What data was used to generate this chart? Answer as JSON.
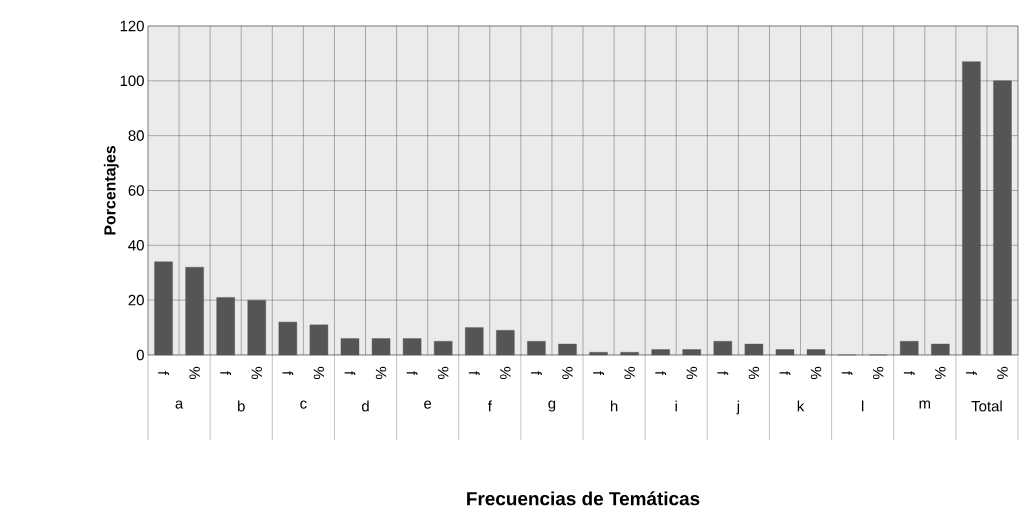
{
  "chart_data": {
    "type": "bar",
    "xlabel": "Frecuencias de Temáticas",
    "ylabel": "Porcentajes",
    "categories": [
      "a",
      "b",
      "c",
      "d",
      "e",
      "f",
      "g",
      "h",
      "i",
      "j",
      "k",
      "l",
      "m",
      "Total"
    ],
    "series": [
      {
        "name": "f",
        "color": "#555555",
        "values": [
          34,
          21,
          12,
          6,
          6,
          10,
          5,
          1,
          2,
          5,
          2,
          0,
          5,
          107
        ]
      },
      {
        "name": "%",
        "color": "#555555",
        "values": [
          32,
          20,
          11,
          6,
          5,
          9,
          4,
          1,
          2,
          4,
          2,
          0,
          4,
          100
        ]
      }
    ],
    "ylim": [
      0,
      120
    ],
    "yticks": [
      0,
      20,
      40,
      60,
      80,
      100,
      120
    ],
    "grid": true,
    "legend": false
  }
}
